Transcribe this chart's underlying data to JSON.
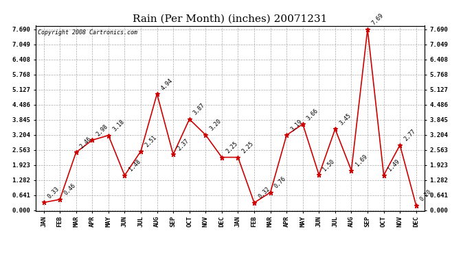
{
  "title": "Rain (Per Month) (inches) 20071231",
  "copyright": "Copyright 2008 Cartronics.com",
  "months": [
    "JAN",
    "FEB",
    "MAR",
    "APR",
    "MAY",
    "JUN",
    "JUL",
    "AUG",
    "SEP",
    "OCT",
    "NOV",
    "DEC",
    "JAN",
    "FEB",
    "MAR",
    "APR",
    "MAY",
    "JUN",
    "JUL",
    "AUG",
    "SEP",
    "OCT",
    "NOV",
    "DEC"
  ],
  "values": [
    0.33,
    0.46,
    2.46,
    2.98,
    3.18,
    1.48,
    2.51,
    4.94,
    2.37,
    3.87,
    3.2,
    2.25,
    2.25,
    0.32,
    0.76,
    3.19,
    3.66,
    1.5,
    3.45,
    1.69,
    7.69,
    1.49,
    2.77,
    0.2
  ],
  "line_color": "#cc0000",
  "marker": "*",
  "marker_color": "#cc0000",
  "marker_size": 5,
  "bg_color": "#ffffff",
  "grid_color": "#aaaaaa",
  "yticks": [
    0.0,
    0.641,
    1.282,
    1.923,
    2.563,
    3.204,
    3.845,
    4.486,
    5.127,
    5.768,
    6.408,
    7.049,
    7.69
  ],
  "ymin": 0.0,
  "ymax": 7.69,
  "title_fontsize": 11,
  "label_fontsize": 6.5,
  "annotation_fontsize": 6,
  "copyright_fontsize": 6
}
